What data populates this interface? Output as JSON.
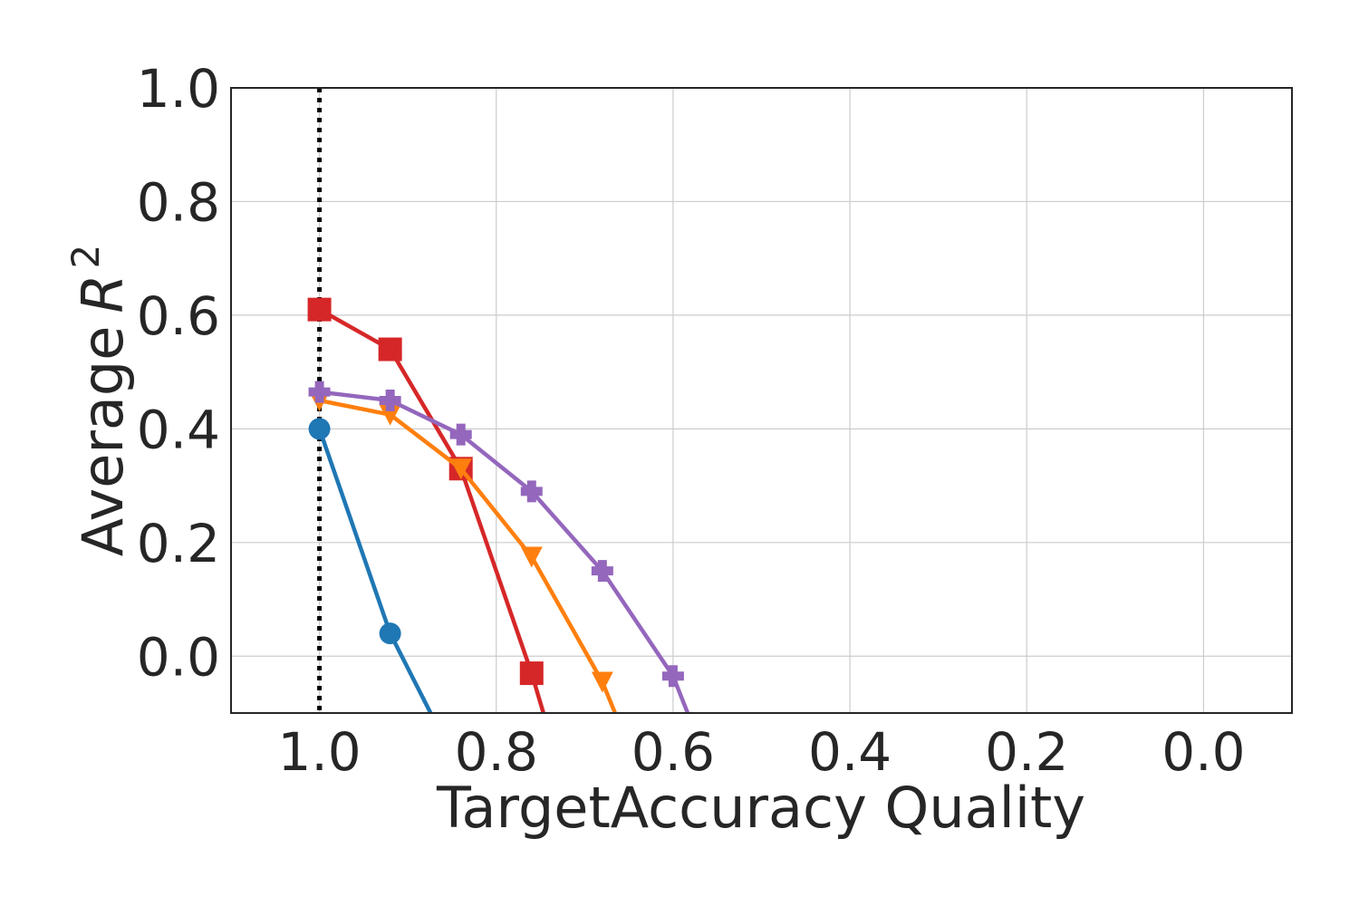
{
  "chart_data": {
    "type": "line",
    "xlabel": "TargetAccuracy Quality",
    "ylabel": "Average",
    "ylabel_math": "R",
    "ylabel_sup": "2",
    "xlim": [
      1.1,
      -0.1
    ],
    "ylim": [
      -0.1,
      1.0
    ],
    "x_ticks": [
      1.0,
      0.8,
      0.6,
      0.4,
      0.2,
      0.0
    ],
    "x_tick_labels": [
      "1.0",
      "0.8",
      "0.6",
      "0.4",
      "0.2",
      "0.0"
    ],
    "y_ticks": [
      0.0,
      0.2,
      0.4,
      0.6,
      0.8,
      1.0
    ],
    "y_tick_labels": [
      "0.0",
      "0.2",
      "0.4",
      "0.6",
      "0.8",
      "1.0"
    ],
    "x_reversed": true,
    "grid": true,
    "reference_line": {
      "x": 1.0,
      "style": "dotted",
      "color": "#000000"
    },
    "series": [
      {
        "color": "#1f77b4",
        "marker": "circle",
        "x": [
          1.0,
          0.92,
          0.76
        ],
        "y": [
          0.4,
          0.04,
          -0.45
        ]
      },
      {
        "color": "#d62728",
        "marker": "square",
        "x": [
          1.0,
          0.92,
          0.84,
          0.76,
          0.68
        ],
        "y": [
          0.61,
          0.54,
          0.33,
          -0.03,
          -0.45
        ]
      },
      {
        "color": "#ff7f0e",
        "marker": "triangle-down",
        "x": [
          1.0,
          0.92,
          0.84,
          0.76,
          0.68,
          0.6
        ],
        "y": [
          0.45,
          0.425,
          0.33,
          0.175,
          -0.045,
          -0.35
        ]
      },
      {
        "color": "#9467bd",
        "marker": "plus",
        "x": [
          1.0,
          0.92,
          0.84,
          0.76,
          0.68,
          0.6,
          0.52
        ],
        "y": [
          0.465,
          0.45,
          0.39,
          0.29,
          0.15,
          -0.035,
          -0.35
        ]
      }
    ]
  }
}
